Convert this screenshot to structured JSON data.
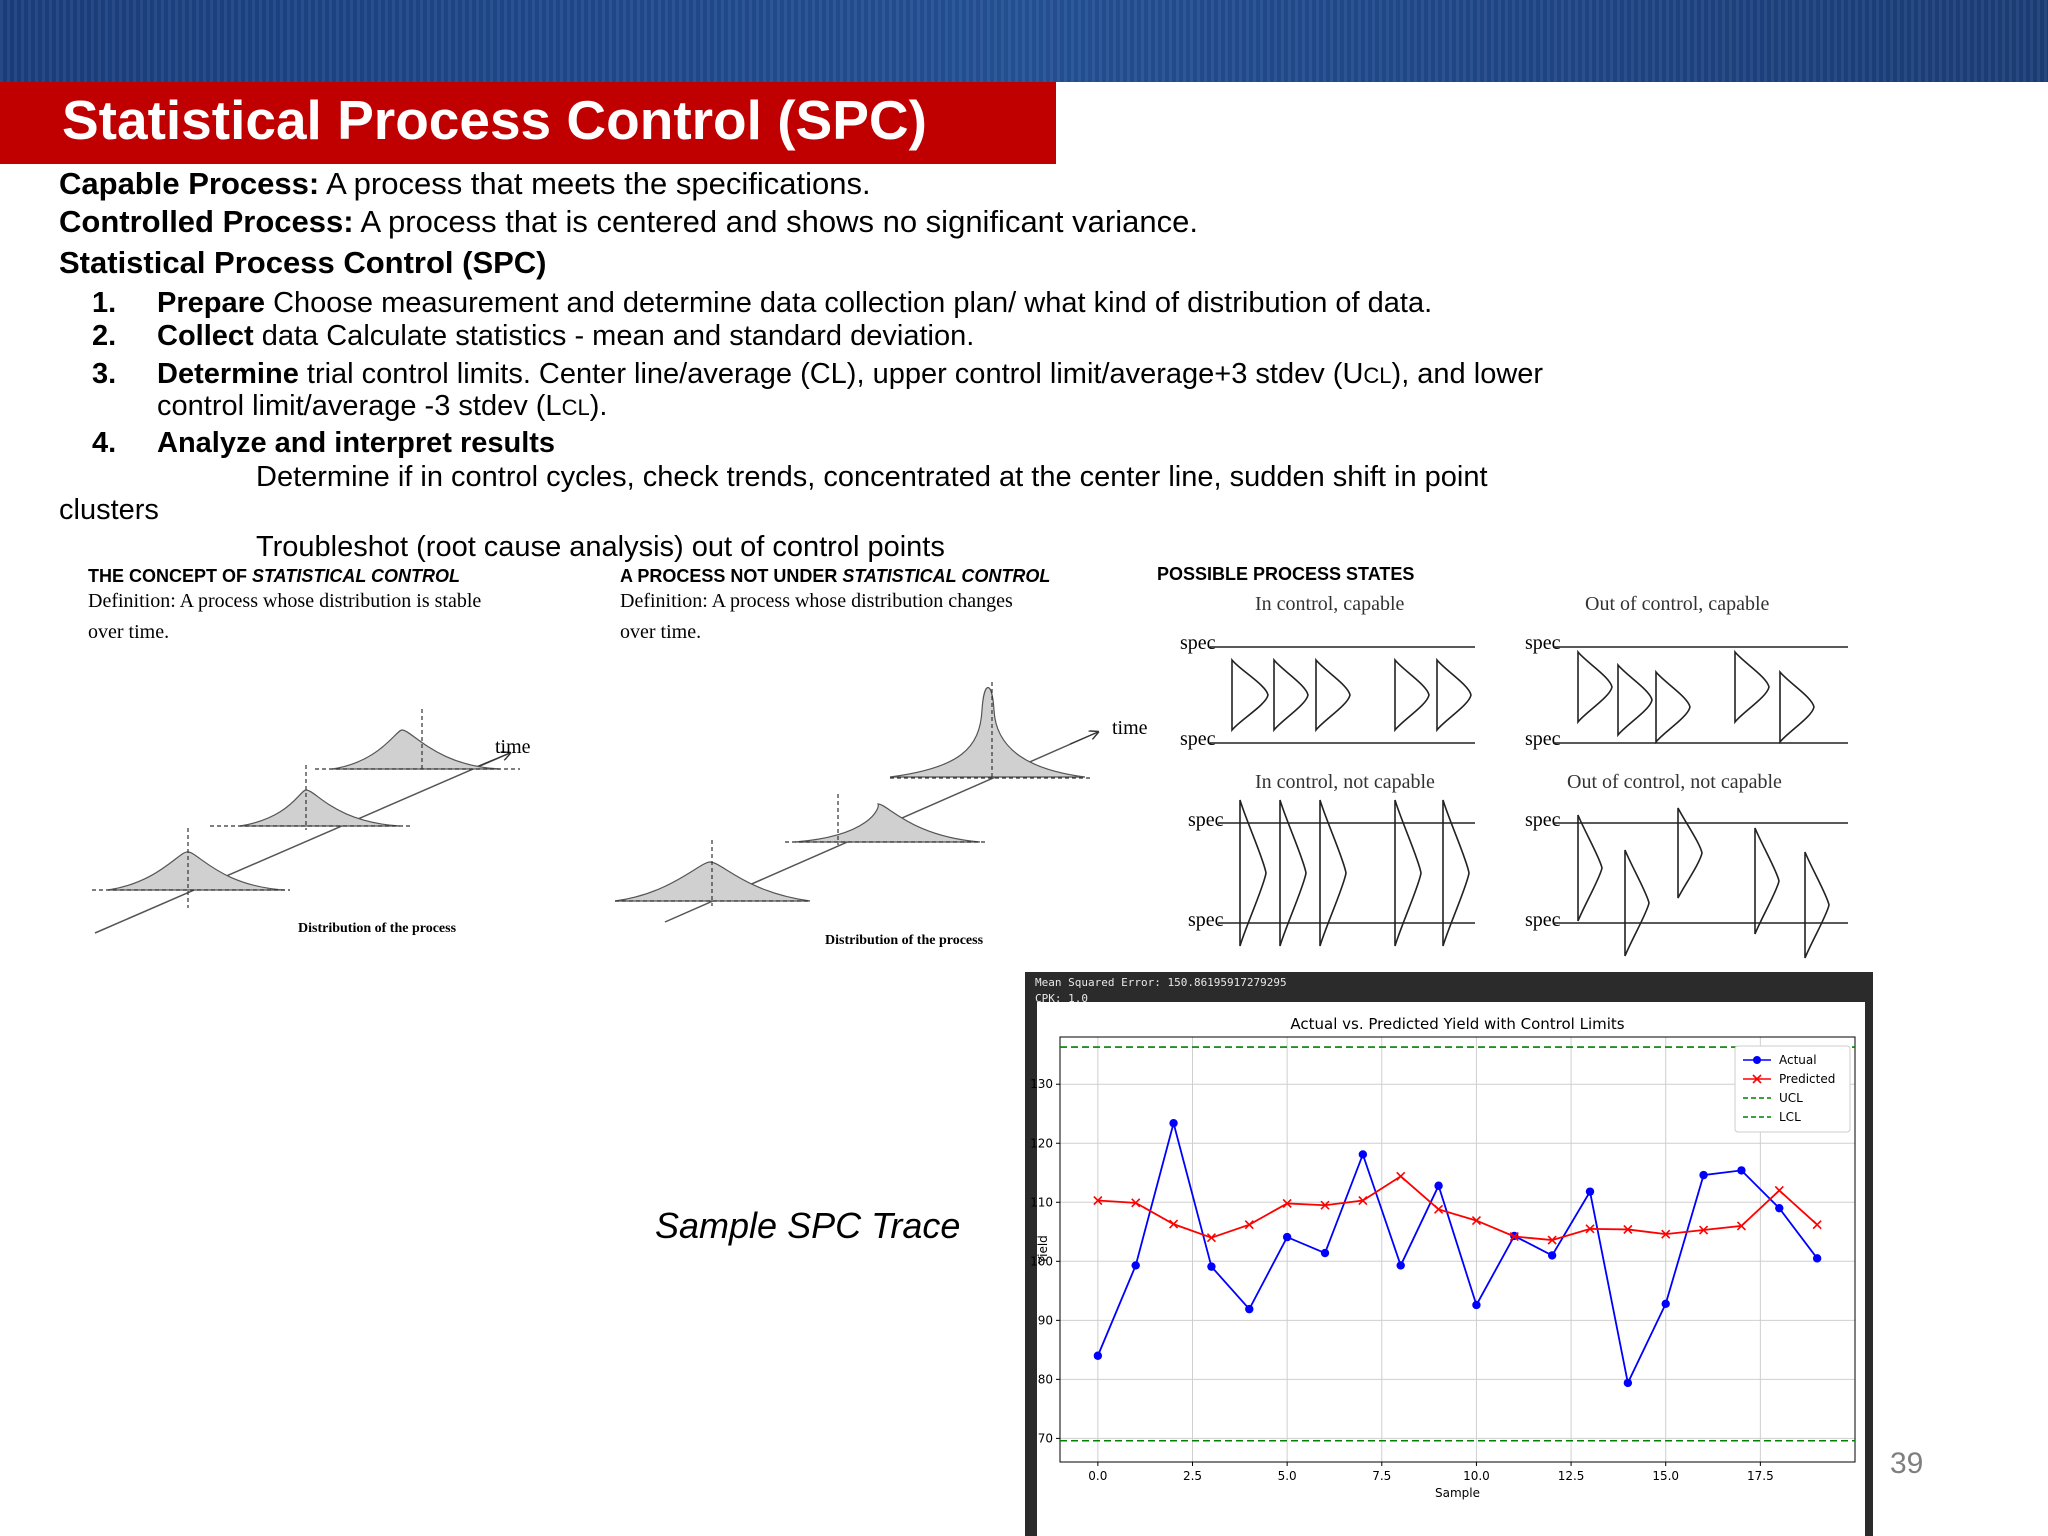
{
  "slide": {
    "title": "Statistical Process Control (SPC)",
    "page_number": "39"
  },
  "definitions": [
    {
      "term": "Capable Process:",
      "text": " A process that meets the specifications."
    },
    {
      "term": "Controlled Process:",
      "text": " A process that is centered and shows no significant variance."
    }
  ],
  "spc_heading": "Statistical Process Control (SPC)",
  "steps": [
    {
      "num": "1.",
      "term": "Prepare",
      "text": " Choose measurement and determine data collection plan/ what kind of distribution of data."
    },
    {
      "num": "2.",
      "term": "Collect",
      "text": " data Calculate statistics - mean and standard deviation."
    },
    {
      "num": "3.",
      "term": "Determine",
      "text": " trial control limits. Center line/average (CL), upper control limit/average+3 stdev (U",
      "sub1": "CL",
      "text_b": "), and lower",
      "line2": "control limit/average -3 stdev (L",
      "sub2": "CL",
      "line2_end": ")."
    },
    {
      "num": "4.",
      "term": "Analyze and interpret results"
    }
  ],
  "analyze_lines": {
    "line1": "Determine if in control cycles, check trends, concentrated at the center line, sudden shift in point",
    "line1_wrap": "clusters",
    "line2": "Troubleshot (root cause analysis) out of control points"
  },
  "figure": {
    "panel1": {
      "heading_pre": "THE CONCEPT OF ",
      "heading_em": "STATISTICAL CONTROL",
      "def1": "Definition: A process whose distribution is stable",
      "def2": "over time.",
      "time": "time",
      "caption": "Distribution of the process"
    },
    "panel2": {
      "heading_pre": "A PROCESS NOT UNDER ",
      "heading_em": "STATISTICAL CONTROL",
      "def1": "Definition: A process whose distribution changes",
      "def2": "over time.",
      "time": "time",
      "caption": "Distribution of the process"
    },
    "panel3": {
      "heading": "POSSIBLE PROCESS STATES",
      "q1": "In control, capable",
      "q2": "Out of control, capable",
      "q3": "In control, not capable",
      "q4": "Out of control, not capable",
      "spec": "spec"
    }
  },
  "caption": "Sample SPC Trace",
  "chart_data": {
    "type": "line",
    "stats_line1": "Mean Squared Error: 150.86195917279295",
    "stats_line2": "CPK: 1.0",
    "title": "Actual vs. Predicted Yield with Control Limits",
    "xlabel": "Sample",
    "ylabel": "Yield",
    "xlim": [
      -1,
      20
    ],
    "ylim": [
      66,
      138
    ],
    "xticks": [
      0,
      2.5,
      5,
      7.5,
      10,
      12.5,
      15,
      17.5
    ],
    "xtick_labels": [
      "0.0",
      "2.5",
      "5.0",
      "7.5",
      "10.0",
      "12.5",
      "15.0",
      "17.5"
    ],
    "yticks": [
      70,
      80,
      90,
      100,
      110,
      120,
      130
    ],
    "ytick_labels": [
      "70",
      "80",
      "90",
      "100",
      "110",
      "120",
      "130"
    ],
    "grid": true,
    "legend_position": "top-right",
    "x": [
      0,
      1,
      2,
      3,
      4,
      5,
      6,
      7,
      8,
      9,
      10,
      11,
      12,
      13,
      14,
      15,
      16,
      17,
      18,
      19
    ],
    "series": [
      {
        "name": "Actual",
        "color": "#0000ff",
        "marker": "circle",
        "values": [
          84.0,
          99.3,
          123.4,
          99.1,
          91.9,
          104.1,
          101.4,
          118.1,
          99.3,
          112.8,
          92.6,
          104.3,
          101.0,
          111.8,
          79.4,
          92.8,
          114.6,
          115.4,
          109.0,
          100.5
        ]
      },
      {
        "name": "Predicted",
        "color": "#ff0000",
        "marker": "x",
        "values": [
          110.3,
          109.9,
          106.3,
          104.0,
          106.2,
          109.8,
          109.5,
          110.3,
          114.4,
          108.8,
          106.9,
          104.2,
          103.6,
          105.5,
          105.4,
          104.6,
          105.3,
          106.0,
          112.0,
          106.2
        ]
      }
    ],
    "lines": [
      {
        "name": "UCL",
        "y": 136.3,
        "color": "#008000"
      },
      {
        "name": "LCL",
        "y": 69.6,
        "color": "#008000"
      }
    ]
  }
}
